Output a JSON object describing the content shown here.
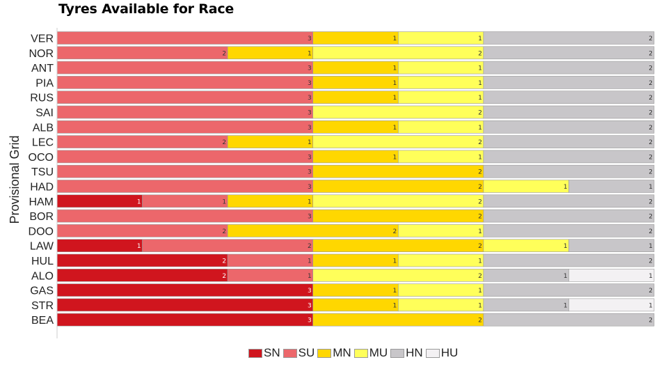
{
  "chart_data": {
    "type": "bar",
    "stacked": true,
    "orientation": "horizontal",
    "title": "Tyres Available for Race",
    "ylabel": "Provisional Grid",
    "xlabel": "",
    "categories": [
      "VER",
      "NOR",
      "ANT",
      "PIA",
      "RUS",
      "SAI",
      "ALB",
      "LEC",
      "OCO",
      "TSU",
      "HAD",
      "HAM",
      "BOR",
      "DOO",
      "LAW",
      "HUL",
      "ALO",
      "GAS",
      "STR",
      "BEA"
    ],
    "series": [
      {
        "name": "SN",
        "color": "#D0151E",
        "values": [
          0,
          0,
          0,
          0,
          0,
          0,
          0,
          0,
          0,
          0,
          0,
          1,
          0,
          0,
          1,
          2,
          2,
          3,
          3,
          3
        ]
      },
      {
        "name": "SU",
        "color": "#EC676B",
        "values": [
          3,
          2,
          3,
          3,
          3,
          3,
          3,
          2,
          3,
          3,
          3,
          1,
          3,
          2,
          2,
          1,
          1,
          0,
          0,
          0
        ]
      },
      {
        "name": "MN",
        "color": "#FFD700",
        "values": [
          1,
          1,
          1,
          1,
          1,
          0,
          1,
          1,
          1,
          2,
          2,
          1,
          2,
          2,
          2,
          1,
          0,
          1,
          1,
          2
        ]
      },
      {
        "name": "MU",
        "color": "#FFFF5A",
        "values": [
          1,
          2,
          1,
          1,
          1,
          2,
          1,
          2,
          1,
          0,
          1,
          2,
          0,
          1,
          1,
          1,
          2,
          1,
          1,
          0
        ]
      },
      {
        "name": "HN",
        "color": "#C8C6C9",
        "values": [
          2,
          2,
          2,
          2,
          2,
          2,
          2,
          2,
          2,
          2,
          1,
          2,
          2,
          2,
          1,
          2,
          1,
          2,
          1,
          2
        ]
      },
      {
        "name": "HU",
        "color": "#F3F1F3",
        "values": [
          0,
          0,
          0,
          0,
          0,
          0,
          0,
          0,
          0,
          0,
          0,
          0,
          0,
          0,
          0,
          0,
          1,
          0,
          1,
          0
        ]
      }
    ],
    "xlim": [
      0,
      7
    ],
    "legend_position": "bottom-center"
  }
}
